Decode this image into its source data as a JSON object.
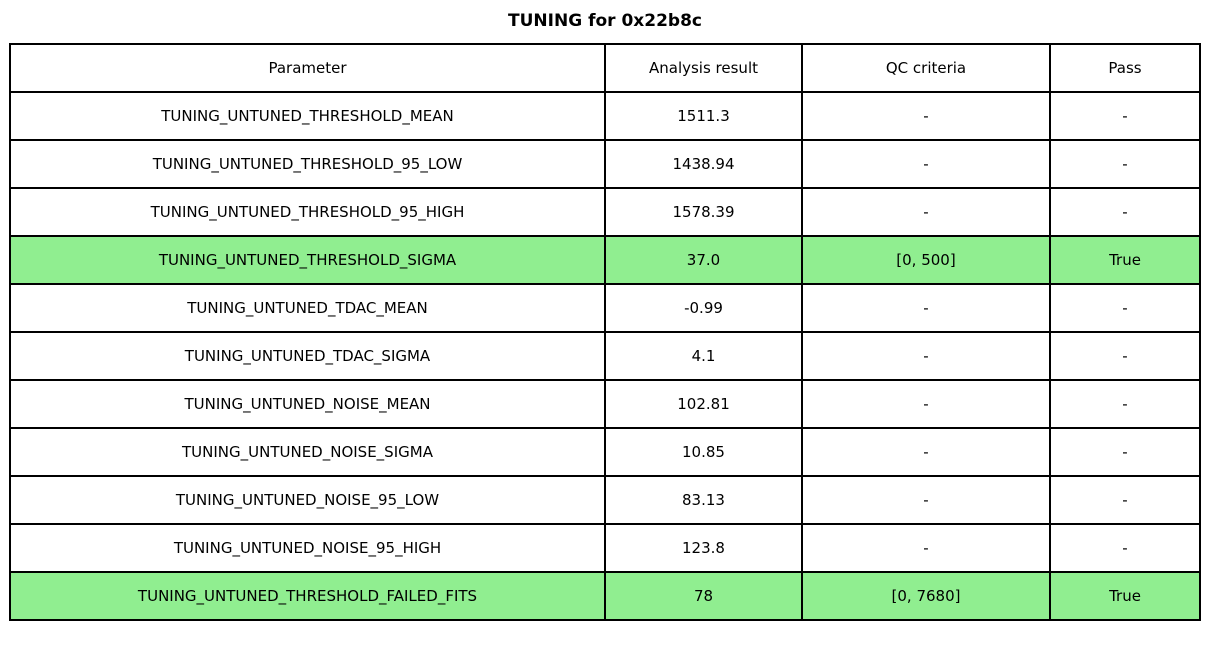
{
  "title": "TUNING for 0x22b8c",
  "colors": {
    "highlight_green": "#90ee90",
    "border": "#000000",
    "text": "#000000",
    "background": "#ffffff"
  },
  "chart_data": {
    "type": "table",
    "title": "TUNING for 0x22b8c",
    "columns": [
      "Parameter",
      "Analysis result",
      "QC criteria",
      "Pass"
    ],
    "rows": [
      {
        "parameter": "TUNING_UNTUNED_THRESHOLD_MEAN",
        "result": "1511.3",
        "qc": "-",
        "pass": "-",
        "highlight": false
      },
      {
        "parameter": "TUNING_UNTUNED_THRESHOLD_95_LOW",
        "result": "1438.94",
        "qc": "-",
        "pass": "-",
        "highlight": false
      },
      {
        "parameter": "TUNING_UNTUNED_THRESHOLD_95_HIGH",
        "result": "1578.39",
        "qc": "-",
        "pass": "-",
        "highlight": false
      },
      {
        "parameter": "TUNING_UNTUNED_THRESHOLD_SIGMA",
        "result": "37.0",
        "qc": "[0, 500]",
        "pass": "True",
        "highlight": true
      },
      {
        "parameter": "TUNING_UNTUNED_TDAC_MEAN",
        "result": "-0.99",
        "qc": "-",
        "pass": "-",
        "highlight": false
      },
      {
        "parameter": "TUNING_UNTUNED_TDAC_SIGMA",
        "result": "4.1",
        "qc": "-",
        "pass": "-",
        "highlight": false
      },
      {
        "parameter": "TUNING_UNTUNED_NOISE_MEAN",
        "result": "102.81",
        "qc": "-",
        "pass": "-",
        "highlight": false
      },
      {
        "parameter": "TUNING_UNTUNED_NOISE_SIGMA",
        "result": "10.85",
        "qc": "-",
        "pass": "-",
        "highlight": false
      },
      {
        "parameter": "TUNING_UNTUNED_NOISE_95_LOW",
        "result": "83.13",
        "qc": "-",
        "pass": "-",
        "highlight": false
      },
      {
        "parameter": "TUNING_UNTUNED_NOISE_95_HIGH",
        "result": "123.8",
        "qc": "-",
        "pass": "-",
        "highlight": false
      },
      {
        "parameter": "TUNING_UNTUNED_THRESHOLD_FAILED_FITS",
        "result": "78",
        "qc": "[0, 7680]",
        "pass": "True",
        "highlight": true
      }
    ]
  }
}
